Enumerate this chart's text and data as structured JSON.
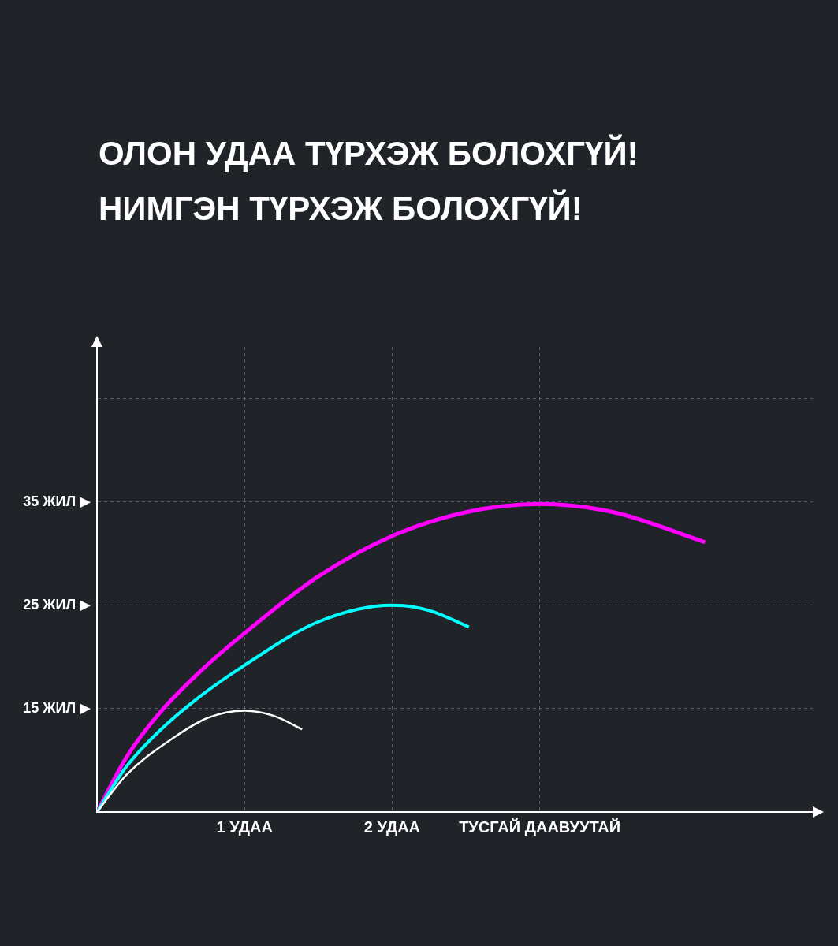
{
  "chart_data": {
    "type": "line",
    "title": "ОЛОН УДАА ТҮРХЭЖ БОЛОХГҮЙ!\nНИМГЭН ТҮРХЭЖ БОЛОХГҮЙ!",
    "xlim": [
      0,
      4.85
    ],
    "xticks": [
      {
        "value": 1,
        "label": "1 УДАА"
      },
      {
        "value": 2,
        "label": "2 УДАА"
      },
      {
        "value": 3,
        "label": "ТУСГАЙ ДААВУУТАЙ"
      }
    ],
    "ylim": [
      5,
      50
    ],
    "yticks": [
      {
        "value": 15,
        "label": "15 ЖИЛ ▶"
      },
      {
        "value": 25,
        "label": "25 ЖИЛ ▶"
      },
      {
        "value": 35,
        "label": "35 ЖИЛ ▶"
      },
      {
        "value": 45,
        "label": null
      }
    ],
    "grid": true,
    "legend": false,
    "marker": "none",
    "line_style": "solid",
    "series": [
      {
        "color": "#ffffff",
        "x": [
          0,
          0.2,
          0.5,
          0.75,
          1,
          1.2,
          1.39
        ],
        "values": [
          5,
          8.6,
          12,
          14.1,
          14.8,
          14.3,
          13
        ]
      },
      {
        "color": "#00ffff",
        "x": [
          0,
          0.2,
          0.42,
          0.7,
          1,
          1.5,
          2,
          2.25,
          2.52
        ],
        "values": [
          5,
          9.4,
          12.8,
          16.2,
          19.2,
          23.4,
          25,
          24.5,
          22.9
        ]
      },
      {
        "color": "#ff00ff",
        "x": [
          0,
          0.2,
          0.42,
          0.7,
          1,
          1.5,
          2,
          2.5,
          3,
          3.5,
          4.12
        ],
        "values": [
          5,
          10.3,
          14.5,
          18.6,
          22.3,
          27.8,
          31.7,
          34,
          34.8,
          34,
          31.1
        ]
      }
    ]
  }
}
